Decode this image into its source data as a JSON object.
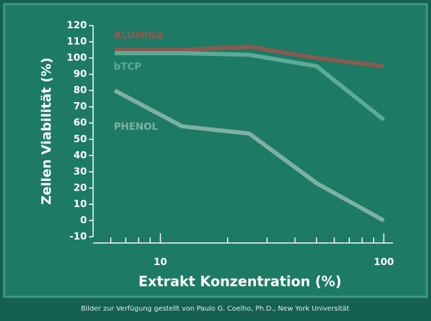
{
  "chart_data": {
    "type": "line",
    "ylabel": "Zellen Viabilität (%)",
    "xlabel": "Extrakt Konzentration (%)",
    "xscale": "log",
    "x": [
      6.25,
      12.5,
      25,
      50,
      100
    ],
    "xlim": [
      5,
      110
    ],
    "xticks": [
      10,
      100
    ],
    "xminor_ticks": [
      6,
      7,
      8,
      9,
      20,
      30,
      40,
      50,
      60,
      70,
      80,
      90
    ],
    "ylim": [
      -10,
      120
    ],
    "yticks": [
      -10,
      0,
      10,
      20,
      30,
      40,
      50,
      60,
      70,
      80,
      90,
      100,
      110,
      120
    ],
    "series": [
      {
        "name": "ALUMINA",
        "color": "#8b5a4f",
        "values": [
          105,
          105,
          107,
          100,
          95
        ]
      },
      {
        "name": "bTCP",
        "color": "#5bab97",
        "values": [
          103,
          103,
          102,
          95,
          62
        ]
      },
      {
        "name": "PHENOL",
        "color": "#7fb0a4",
        "values": [
          80,
          58,
          53.5,
          23,
          0
        ]
      }
    ],
    "credit": "Bilder zur Verfügung gestellt von Paulo G. Coelho, Ph.D., New York Universität"
  }
}
